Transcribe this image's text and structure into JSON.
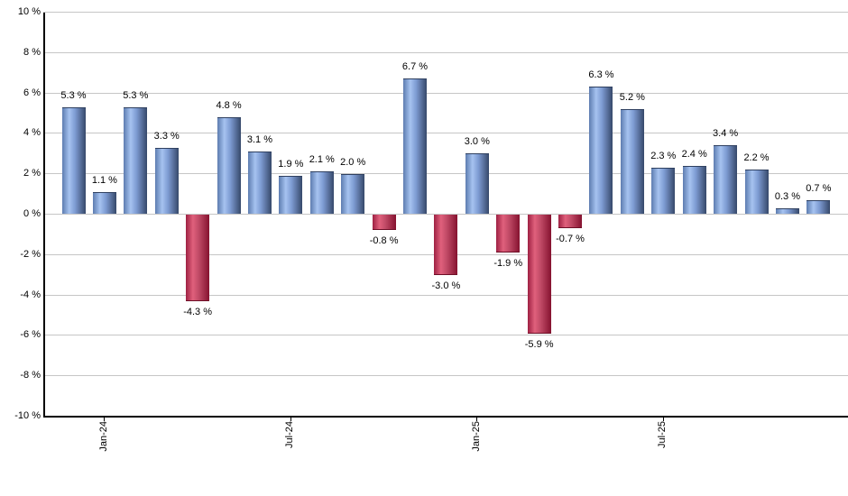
{
  "chart_data": {
    "type": "bar",
    "title": "",
    "xlabel": "",
    "ylabel": "",
    "ylim": [
      -10,
      10
    ],
    "grid": true,
    "legend": false,
    "values": [
      5.3,
      1.1,
      5.3,
      3.3,
      -4.3,
      4.8,
      3.1,
      1.9,
      2.1,
      2.0,
      -0.8,
      6.7,
      -3.0,
      3.0,
      -1.9,
      -5.9,
      -0.7,
      6.3,
      5.2,
      2.3,
      2.4,
      3.4,
      2.2,
      0.3,
      0.7
    ],
    "value_labels": [
      "5.3 %",
      "1.1 %",
      "5.3 %",
      "3.3 %",
      "-4.3 %",
      "4.8 %",
      "3.1 %",
      "1.9 %",
      "2.1 %",
      "2.0 %",
      "-0.8 %",
      "6.7 %",
      "-3.0 %",
      "3.0 %",
      "-1.9 %",
      "-5.9 %",
      "-0.7 %",
      "6.3 %",
      "5.2 %",
      "2.3 %",
      "2.4 %",
      "3.4 %",
      "2.2 %",
      "0.3 %",
      "0.7 %"
    ],
    "y_tick_labels": [
      "10 %",
      "8 %",
      "6 %",
      "4 %",
      "2 %",
      "0 %",
      "-2 %",
      "-4 %",
      "-6 %",
      "-8 %",
      "-10 %"
    ],
    "x_ticks": [
      {
        "label": "Jan-24",
        "bar_index": 1
      },
      {
        "label": "Jul-24",
        "bar_index": 7
      },
      {
        "label": "Jan-25",
        "bar_index": 13
      },
      {
        "label": "Jul-25",
        "bar_index": 19
      }
    ],
    "colors": {
      "positive_bar_light": "#a6c3f0",
      "positive_bar_dark": "#36486a",
      "negative_bar_light": "#e0607c",
      "negative_bar_dark": "#85122f",
      "gridline": "#c6c6c6",
      "axis": "#000000",
      "label_text": "#000000",
      "background": "#ffffff"
    }
  }
}
